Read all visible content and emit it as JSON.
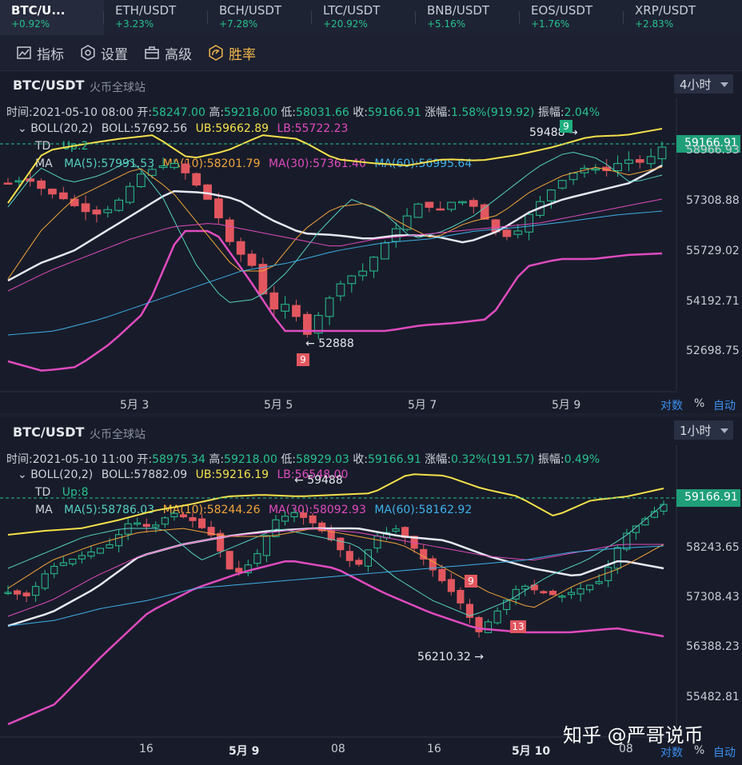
{
  "tickers": [
    {
      "symbol": "BTC/U...",
      "change": "+0.92%"
    },
    {
      "symbol": "ETH/USDT",
      "change": "+3.23%"
    },
    {
      "symbol": "BCH/USDT",
      "change": "+7.28%"
    },
    {
      "symbol": "LTC/USDT",
      "change": "+20.92%"
    },
    {
      "symbol": "BNB/USDT",
      "change": "+5.16%"
    },
    {
      "symbol": "EOS/USDT",
      "change": "+1.76%"
    },
    {
      "symbol": "XRP/USDT",
      "change": "+2.83%"
    }
  ],
  "toolbar": {
    "indicators": "指标",
    "settings": "设置",
    "advanced": "高级",
    "winrate": "胜率"
  },
  "panel1": {
    "pair": "BTC/USDT",
    "source": "火币全球站",
    "interval": "4小时",
    "info": {
      "time_label": "时间:",
      "time": "2021-05-10 08:00",
      "open_label": "开:",
      "open": "58247.00",
      "high_label": "高:",
      "high": "59218.00",
      "low_label": "低:",
      "low": "58031.66",
      "close_label": "收:",
      "close": "59166.91",
      "chg_label": "涨幅:",
      "chg": "1.58%(919.92)",
      "amp_label": "振幅:",
      "amp": "2.04%"
    },
    "boll": {
      "name": "BOLL(20,2)",
      "mid": "BOLL:57692.56",
      "ub": "UB:59662.89",
      "lb": "LB:55722.23"
    },
    "td": {
      "name": "TD",
      "value": "Up:2"
    },
    "ma": {
      "name": "MA",
      "ma5": "MA(5):57991.53",
      "ma10": "MA(10):58201.79",
      "ma30": "MA(30):57361.40",
      "ma60": "MA(60):56995.64"
    },
    "price": "59166.91",
    "yaxis": [
      "58966.93",
      "57308.88",
      "55729.02",
      "54192.71",
      "52698.75"
    ],
    "xaxis": [
      "5月 3",
      "5月 5",
      "5月 7",
      "5月 9"
    ],
    "annotations": {
      "high": "59488",
      "low": "52888",
      "td_high": "9",
      "td_low": "9"
    },
    "footer": {
      "log": "对数",
      "pct": "%",
      "auto": "自动"
    }
  },
  "panel2": {
    "pair": "BTC/USDT",
    "source": "火币全球站",
    "interval": "1小时",
    "info": {
      "time_label": "时间:",
      "time": "2021-05-10 11:00",
      "open_label": "开:",
      "open": "58975.34",
      "high_label": "高:",
      "high": "59218.00",
      "low_label": "低:",
      "low": "58929.03",
      "close_label": "收:",
      "close": "59166.91",
      "chg_label": "涨幅:",
      "chg": "0.32%(191.57)",
      "amp_label": "振幅:",
      "amp": "0.49%"
    },
    "boll": {
      "name": "BOLL(20,2)",
      "mid": "BOLL:57882.09",
      "ub": "UB:59216.19",
      "lb": "LB:56548.00"
    },
    "td": {
      "name": "TD",
      "value": "Up:8"
    },
    "ma": {
      "name": "MA",
      "ma5": "MA(5):58786.03",
      "ma10": "MA(10):58244.26",
      "ma30": "MA(30):58092.93",
      "ma60": "MA(60):58162.92"
    },
    "price": "59166.91",
    "yaxis": [
      "58243.65",
      "57308.43",
      "56388.23",
      "55482.81"
    ],
    "xaxis": [
      "16",
      "5月 9",
      "08",
      "16",
      "5月 10",
      "08"
    ],
    "annotations": {
      "high": "59488",
      "low": "56210.32",
      "td1": "9",
      "td2": "13"
    },
    "footer": {
      "log": "对数",
      "pct": "%",
      "auto": "自动"
    }
  },
  "watermark": "知乎 @严哥说币",
  "colors": {
    "up": "#26c28e",
    "down": "#e2575f",
    "boll_band": "#f5e14a",
    "boll_mid": "#e6e8f2",
    "lb": "#e04bbf",
    "accent": "#f2b84b"
  }
}
